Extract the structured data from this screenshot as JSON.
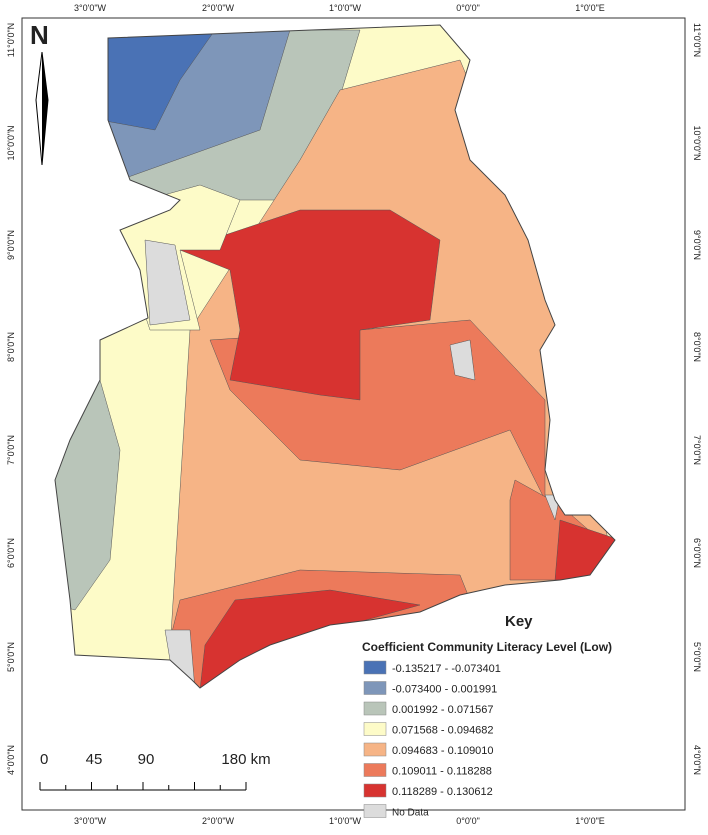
{
  "map": {
    "north": "N",
    "top_labels": [
      "3°0'0\"W",
      "2°0'0\"W",
      "1°0'0\"W",
      "0°0'0\"",
      "1°0'0\"E"
    ],
    "bottom_labels": [
      "3°0'0\"W",
      "2°0'0\"W",
      "1°0'0\"W",
      "0°0'0\"",
      "1°0'0\"E"
    ],
    "left_labels": [
      "11°0'0\"N",
      "10°0'0\"N",
      "9°0'0\"N",
      "8°0'0\"N",
      "7°0'0\"N",
      "6°0'0\"N",
      "5°0'0\"N",
      "4°0'0\"N"
    ],
    "right_labels": [
      "11°0'0\"N",
      "10°0'0\"N",
      "9°0'0\"N",
      "8°0'0\"N",
      "7°0'0\"N",
      "6°0'0\"N",
      "5°0'0\"N",
      "4°0'0\"N"
    ],
    "key": {
      "title": "Key",
      "subtitle": "Coefficient Community Literacy Level (Low)",
      "classes": [
        {
          "label": "-0.135217 - -0.073401",
          "color": "#4a72b5"
        },
        {
          "label": "-0.073400 - 0.001991",
          "color": "#7e96b9"
        },
        {
          "label": "0.001992 - 0.071567",
          "color": "#b9c5b9"
        },
        {
          "label": "0.071568 - 0.094682",
          "color": "#fdfbc8"
        },
        {
          "label": "0.094683 - 0.109010",
          "color": "#f6b486"
        },
        {
          "label": "0.109011 - 0.118288",
          "color": "#ec7a5b"
        },
        {
          "label": "0.118289 - 0.130612",
          "color": "#d73330"
        },
        {
          "label": "No Data",
          "color": "#dcdcdc"
        }
      ]
    },
    "scale": {
      "labels": [
        "0",
        "45",
        "90",
        "180 km"
      ]
    }
  }
}
